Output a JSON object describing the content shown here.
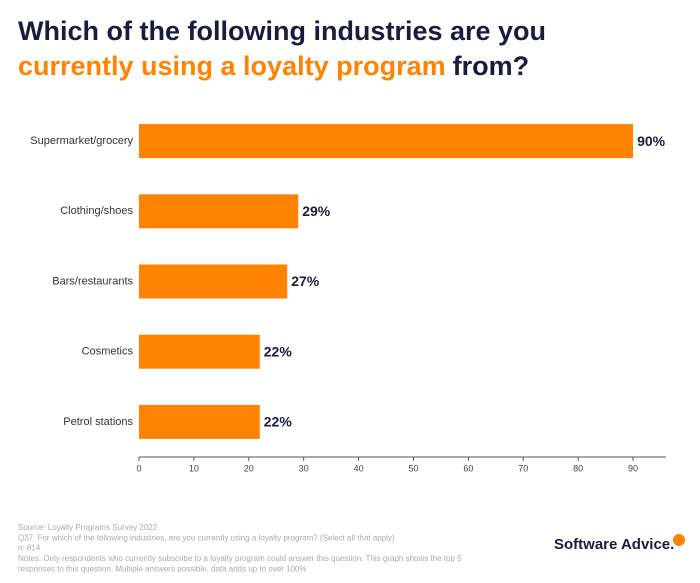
{
  "chart_data": {
    "type": "hbar",
    "title_parts": [
      {
        "text": "Which of the following industries are you",
        "color": "#1b1b3f",
        "line": 1
      },
      {
        "text": "currently using a loyalty program",
        "color": "#ff8200",
        "line": 2
      },
      {
        "text": "from?",
        "color": "#1b1b3f",
        "line": 2
      }
    ],
    "categories": [
      "Supermarket/grocery",
      "Clothing/shoes",
      "Bars/restaurants",
      "Cosmetics",
      "Petrol stations"
    ],
    "values": [
      90,
      29,
      27,
      22,
      22
    ],
    "value_labels": [
      "90%",
      "29%",
      "27%",
      "22%",
      "22%"
    ],
    "color": "#ff8200",
    "xlim": [
      0,
      96
    ],
    "xticks": [
      0,
      10,
      20,
      30,
      40,
      50,
      60,
      70,
      80,
      90
    ],
    "grid": false,
    "footnotes": [
      "Source: Loyalty Programs Survey 2022",
      "Q37: For which of the following industries, are you currently using a loyalty program? (Select all that apply)",
      "n: 814",
      "Notes: Only respondents who currently subscribe to a loyalty program could answer this question. This graph shows the top 5",
      "responses to this question. Multiple answers possible, data adds up to over 100%"
    ],
    "brand": "Software Advice."
  }
}
